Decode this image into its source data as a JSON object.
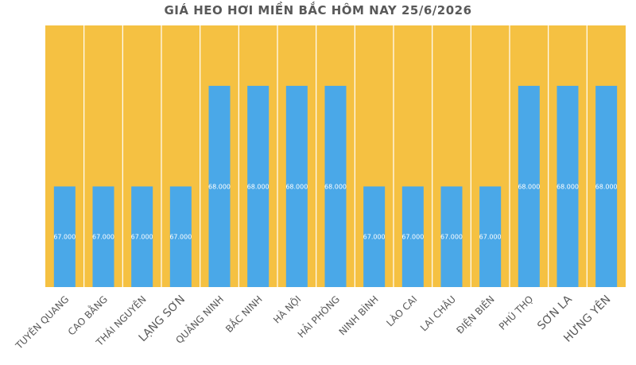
{
  "chart_data": {
    "type": "bar",
    "title": "GIÁ HEO HƠI MIỀN BẮC HÔM NAY 25/6/2026",
    "xlabel": "",
    "ylabel": "",
    "ylim": [
      66000,
      68600
    ],
    "grid": false,
    "legend": "none",
    "categories": [
      "TUYÊN QUANG",
      "CAO BẰNG",
      "THÁI NGUYÊN",
      "LẠNG SƠN",
      "QUẢNG NINH",
      "BẮC NINH",
      "HÀ NỘI",
      "HẢI PHÒNG",
      "NINH BÌNH",
      "LÀO CAI",
      "LAI CHÂU",
      "ĐIỆN BIÊN",
      "PHÚ THỌ",
      "SƠN LA",
      "HƯNG YÊN"
    ],
    "values": [
      67000,
      67000,
      67000,
      67000,
      68000,
      68000,
      68000,
      68000,
      67000,
      67000,
      67000,
      67000,
      68000,
      68000,
      68000
    ],
    "data_labels": [
      "67.000",
      "67.000",
      "67.000",
      "67.000",
      "68.000",
      "68.000",
      "68.000",
      "68.000",
      "67.000",
      "67.000",
      "67.000",
      "67.000",
      "68.000",
      "68.000",
      "68.000"
    ],
    "colors": {
      "plot_background": "#F5C142",
      "bar": "#4AA8E8",
      "column_separator": "#FFFFFF",
      "title": "#595959",
      "tick_label": "#595959"
    }
  }
}
